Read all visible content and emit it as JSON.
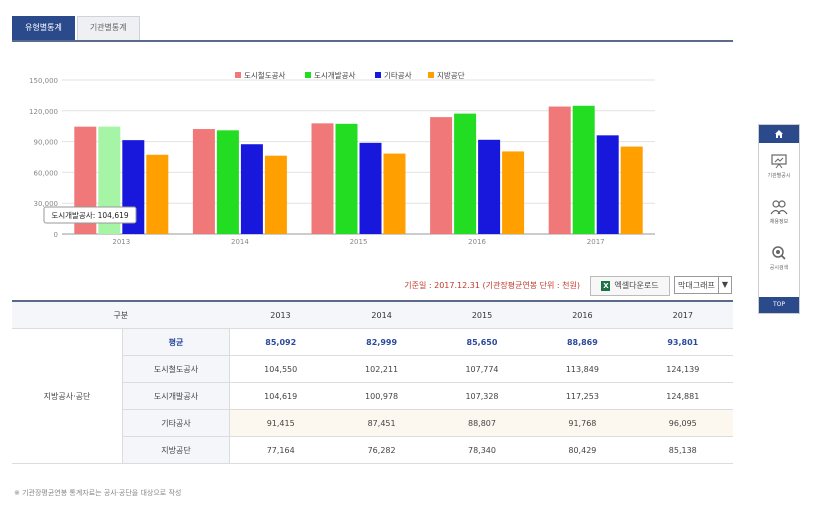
{
  "tabs": [
    {
      "label": "유형별통계",
      "active": true
    },
    {
      "label": "기관별통계",
      "active": false
    }
  ],
  "chart_data": {
    "type": "bar",
    "categories": [
      "2013",
      "2014",
      "2015",
      "2016",
      "2017"
    ],
    "series": [
      {
        "name": "도시철도공사",
        "color": "#f07878",
        "values": [
          104550,
          102211,
          107774,
          113849,
          124139
        ]
      },
      {
        "name": "도시개발공사",
        "color": "#22dd22",
        "values": [
          104619,
          100978,
          107328,
          117253,
          124881
        ]
      },
      {
        "name": "기타공사",
        "color": "#1818dd",
        "values": [
          91415,
          87451,
          88807,
          91768,
          96095
        ]
      },
      {
        "name": "지방공단",
        "color": "#ffa000",
        "values": [
          77164,
          76282,
          78340,
          80429,
          85138
        ]
      }
    ],
    "y_ticks": [
      "0",
      "30,000",
      "60,000",
      "90,000",
      "120,000",
      "150,000"
    ],
    "ylim": [
      0,
      150000
    ],
    "legend": "top-center",
    "grid": true,
    "tooltip": {
      "text": "도시개발공사: 104,619",
      "series": 1,
      "category": 0
    }
  },
  "info": {
    "basis": "기준일 : 2017.12.31 (기관장평균연봉 단위 : 천원)",
    "excel_label": "엑셀다운로드",
    "excel_icon": "excel-icon",
    "chart_select": "막대그래프"
  },
  "table": {
    "headers": [
      "구분",
      "2013",
      "2014",
      "2015",
      "2016",
      "2017"
    ],
    "group_label": "지방공사·공단",
    "rows": [
      {
        "label": "평균",
        "values": [
          "85,092",
          "82,999",
          "85,650",
          "88,869",
          "93,801"
        ]
      },
      {
        "label": "도시철도공사",
        "values": [
          "104,550",
          "102,211",
          "107,774",
          "113,849",
          "124,139"
        ]
      },
      {
        "label": "도시개발공사",
        "values": [
          "104,619",
          "100,978",
          "107,328",
          "117,253",
          "124,881"
        ]
      },
      {
        "label": "기타공사",
        "values": [
          "91,415",
          "87,451",
          "88,807",
          "91,768",
          "96,095"
        ]
      },
      {
        "label": "지방공단",
        "values": [
          "77,164",
          "76,282",
          "78,340",
          "80,429",
          "85,138"
        ]
      }
    ]
  },
  "footnote": "※ 기관장평균연봉 통계자료는 공사·공단을 대상으로 작성",
  "quick_nav": {
    "home_icon": "home-icon",
    "items": [
      {
        "label": "기관별공시",
        "icon": "presentation-icon"
      },
      {
        "label": "채용정보",
        "icon": "people-icon"
      },
      {
        "label": "공시검색",
        "icon": "search-icon"
      }
    ],
    "top_label": "TOP"
  }
}
